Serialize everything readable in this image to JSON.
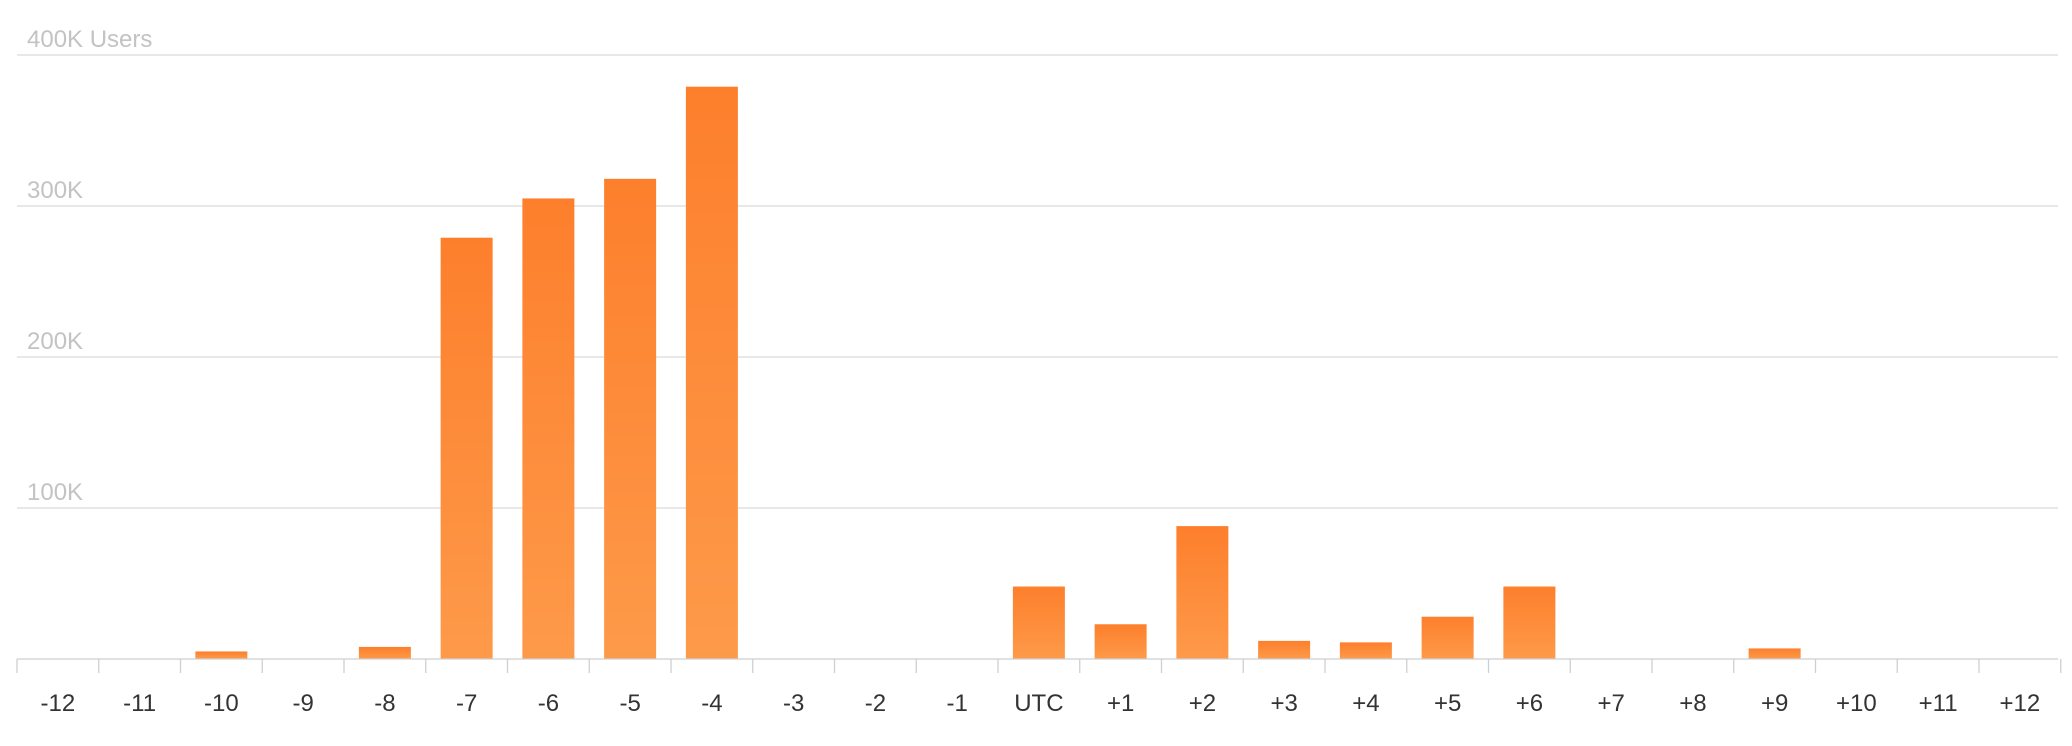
{
  "chart_data": {
    "type": "bar",
    "title": "",
    "xlabel": "",
    "ylabel": "Users",
    "ylim": [
      0,
      400000
    ],
    "grid": true,
    "bar_color": "#fd7f2c",
    "bar_color_light": "#fd9a4a",
    "y_ticks": [
      {
        "value": 100000,
        "label": "100K"
      },
      {
        "value": 200000,
        "label": "200K"
      },
      {
        "value": 300000,
        "label": "300K"
      },
      {
        "value": 400000,
        "label": "400K Users"
      }
    ],
    "categories": [
      "-12",
      "-11",
      "-10",
      "-9",
      "-8",
      "-7",
      "-6",
      "-5",
      "-4",
      "-3",
      "-2",
      "-1",
      "UTC",
      "+1",
      "+2",
      "+3",
      "+4",
      "+5",
      "+6",
      "+7",
      "+8",
      "+9",
      "+10",
      "+11",
      "+12"
    ],
    "values": [
      0,
      0,
      5000,
      0,
      8000,
      279000,
      305000,
      318000,
      379000,
      0,
      0,
      0,
      48000,
      23000,
      88000,
      12000,
      11000,
      28000,
      48000,
      0,
      0,
      7000,
      0,
      0,
      0
    ]
  }
}
